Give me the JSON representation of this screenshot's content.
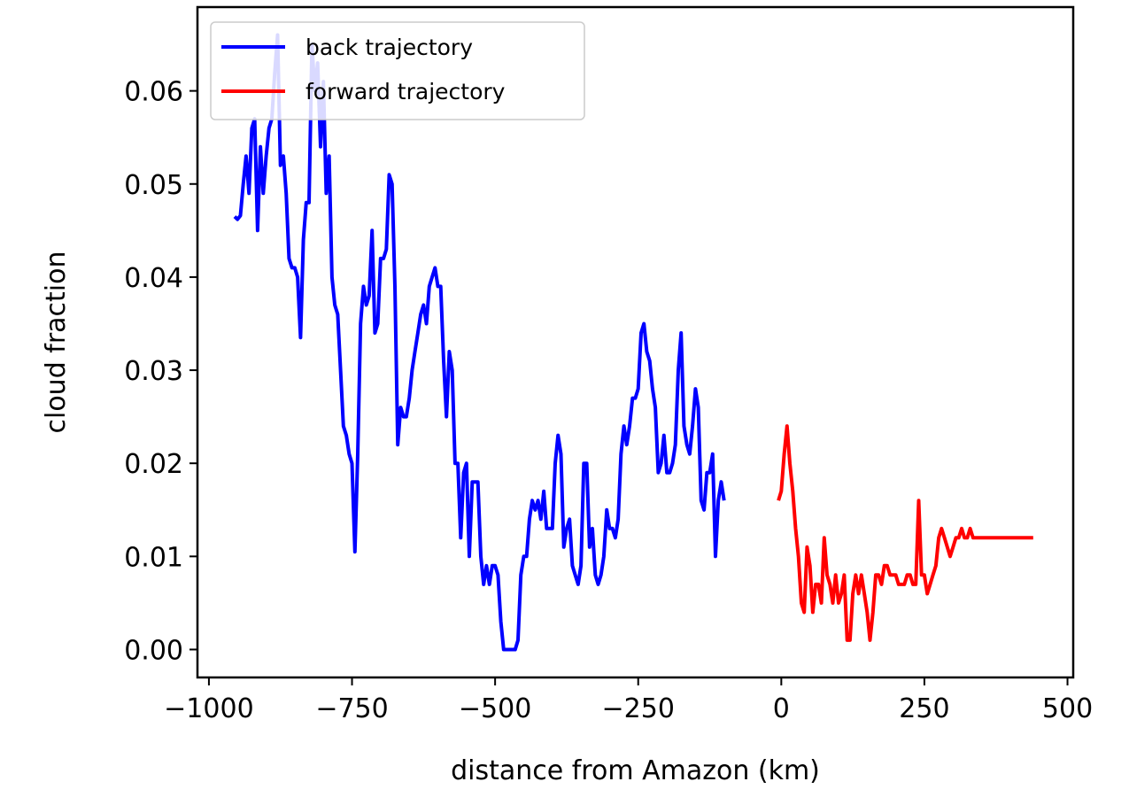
{
  "chart_data": {
    "type": "line",
    "title": "",
    "xlabel": "distance from Amazon (km)",
    "ylabel": "cloud fraction",
    "xlim": [
      -1020,
      510
    ],
    "ylim": [
      -0.003,
      0.069
    ],
    "xticks": [
      -1000,
      -750,
      -500,
      -250,
      0,
      250,
      500
    ],
    "xtick_labels": [
      "−1000",
      "−750",
      "−500",
      "−250",
      "0",
      "250",
      "500"
    ],
    "yticks": [
      0.0,
      0.01,
      0.02,
      0.03,
      0.04,
      0.05,
      0.06
    ],
    "ytick_labels": [
      "0.00",
      "0.01",
      "0.02",
      "0.03",
      "0.04",
      "0.05",
      "0.06"
    ],
    "grid": false,
    "legend": {
      "placement": "top-left"
    },
    "series": [
      {
        "name": "back trajectory",
        "color": "#0000ff",
        "points": [
          [
            -955,
            0.0465
          ],
          [
            -950,
            0.0462
          ],
          [
            -945,
            0.0466
          ],
          [
            -940,
            0.05
          ],
          [
            -935,
            0.053
          ],
          [
            -930,
            0.049
          ],
          [
            -925,
            0.056
          ],
          [
            -920,
            0.057
          ],
          [
            -915,
            0.045
          ],
          [
            -910,
            0.054
          ],
          [
            -905,
            0.049
          ],
          [
            -900,
            0.053
          ],
          [
            -895,
            0.056
          ],
          [
            -890,
            0.057
          ],
          [
            -885,
            0.062
          ],
          [
            -880,
            0.066
          ],
          [
            -875,
            0.052
          ],
          [
            -870,
            0.053
          ],
          [
            -865,
            0.049
          ],
          [
            -860,
            0.042
          ],
          [
            -855,
            0.041
          ],
          [
            -850,
            0.041
          ],
          [
            -845,
            0.04
          ],
          [
            -840,
            0.0335
          ],
          [
            -835,
            0.044
          ],
          [
            -830,
            0.048
          ],
          [
            -825,
            0.048
          ],
          [
            -820,
            0.065
          ],
          [
            -815,
            0.06
          ],
          [
            -810,
            0.063
          ],
          [
            -805,
            0.054
          ],
          [
            -800,
            0.061
          ],
          [
            -795,
            0.049
          ],
          [
            -790,
            0.053
          ],
          [
            -785,
            0.04
          ],
          [
            -780,
            0.037
          ],
          [
            -775,
            0.036
          ],
          [
            -770,
            0.03
          ],
          [
            -765,
            0.024
          ],
          [
            -760,
            0.023
          ],
          [
            -755,
            0.021
          ],
          [
            -750,
            0.02
          ],
          [
            -745,
            0.0105
          ],
          [
            -740,
            0.021
          ],
          [
            -735,
            0.035
          ],
          [
            -730,
            0.039
          ],
          [
            -725,
            0.037
          ],
          [
            -720,
            0.038
          ],
          [
            -715,
            0.045
          ],
          [
            -710,
            0.034
          ],
          [
            -705,
            0.035
          ],
          [
            -700,
            0.042
          ],
          [
            -695,
            0.042
          ],
          [
            -690,
            0.043
          ],
          [
            -685,
            0.051
          ],
          [
            -680,
            0.05
          ],
          [
            -675,
            0.039
          ],
          [
            -670,
            0.022
          ],
          [
            -665,
            0.026
          ],
          [
            -660,
            0.025
          ],
          [
            -655,
            0.025
          ],
          [
            -650,
            0.027
          ],
          [
            -645,
            0.03
          ],
          [
            -640,
            0.032
          ],
          [
            -635,
            0.034
          ],
          [
            -630,
            0.036
          ],
          [
            -625,
            0.037
          ],
          [
            -620,
            0.035
          ],
          [
            -615,
            0.039
          ],
          [
            -610,
            0.04
          ],
          [
            -605,
            0.041
          ],
          [
            -600,
            0.039
          ],
          [
            -595,
            0.039
          ],
          [
            -590,
            0.031
          ],
          [
            -585,
            0.025
          ],
          [
            -580,
            0.032
          ],
          [
            -575,
            0.03
          ],
          [
            -570,
            0.02
          ],
          [
            -565,
            0.02
          ],
          [
            -560,
            0.012
          ],
          [
            -555,
            0.019
          ],
          [
            -550,
            0.02
          ],
          [
            -545,
            0.01
          ],
          [
            -540,
            0.018
          ],
          [
            -535,
            0.018
          ],
          [
            -530,
            0.018
          ],
          [
            -525,
            0.01
          ],
          [
            -520,
            0.007
          ],
          [
            -515,
            0.009
          ],
          [
            -510,
            0.007
          ],
          [
            -505,
            0.009
          ],
          [
            -500,
            0.009
          ],
          [
            -495,
            0.008
          ],
          [
            -490,
            0.003
          ],
          [
            -485,
            0.0
          ],
          [
            -480,
            0.0
          ],
          [
            -475,
            0.0
          ],
          [
            -470,
            0.0
          ],
          [
            -465,
            0.0
          ],
          [
            -460,
            0.001
          ],
          [
            -455,
            0.008
          ],
          [
            -450,
            0.01
          ],
          [
            -445,
            0.01
          ],
          [
            -440,
            0.014
          ],
          [
            -435,
            0.016
          ],
          [
            -430,
            0.015
          ],
          [
            -425,
            0.016
          ],
          [
            -420,
            0.014
          ],
          [
            -415,
            0.017
          ],
          [
            -410,
            0.013
          ],
          [
            -405,
            0.013
          ],
          [
            -400,
            0.013
          ],
          [
            -395,
            0.02
          ],
          [
            -390,
            0.023
          ],
          [
            -385,
            0.021
          ],
          [
            -380,
            0.011
          ],
          [
            -375,
            0.013
          ],
          [
            -370,
            0.014
          ],
          [
            -365,
            0.009
          ],
          [
            -360,
            0.008
          ],
          [
            -355,
            0.007
          ],
          [
            -350,
            0.009
          ],
          [
            -345,
            0.02
          ],
          [
            -340,
            0.02
          ],
          [
            -335,
            0.011
          ],
          [
            -330,
            0.013
          ],
          [
            -325,
            0.008
          ],
          [
            -320,
            0.007
          ],
          [
            -315,
            0.008
          ],
          [
            -310,
            0.01
          ],
          [
            -305,
            0.015
          ],
          [
            -300,
            0.013
          ],
          [
            -295,
            0.013
          ],
          [
            -290,
            0.012
          ],
          [
            -285,
            0.014
          ],
          [
            -280,
            0.021
          ],
          [
            -275,
            0.024
          ],
          [
            -270,
            0.022
          ],
          [
            -265,
            0.024
          ],
          [
            -260,
            0.027
          ],
          [
            -255,
            0.027
          ],
          [
            -250,
            0.028
          ],
          [
            -245,
            0.034
          ],
          [
            -240,
            0.035
          ],
          [
            -235,
            0.032
          ],
          [
            -230,
            0.031
          ],
          [
            -225,
            0.028
          ],
          [
            -220,
            0.026
          ],
          [
            -215,
            0.019
          ],
          [
            -210,
            0.02
          ],
          [
            -205,
            0.023
          ],
          [
            -200,
            0.019
          ],
          [
            -195,
            0.019
          ],
          [
            -190,
            0.02
          ],
          [
            -185,
            0.022
          ],
          [
            -180,
            0.03
          ],
          [
            -175,
            0.034
          ],
          [
            -170,
            0.024
          ],
          [
            -165,
            0.022
          ],
          [
            -160,
            0.021
          ],
          [
            -155,
            0.024
          ],
          [
            -150,
            0.028
          ],
          [
            -145,
            0.026
          ],
          [
            -140,
            0.016
          ],
          [
            -135,
            0.015
          ],
          [
            -130,
            0.019
          ],
          [
            -125,
            0.019
          ],
          [
            -120,
            0.021
          ],
          [
            -115,
            0.01
          ],
          [
            -110,
            0.016
          ],
          [
            -105,
            0.018
          ],
          [
            -100,
            0.016
          ]
        ]
      },
      {
        "name": "forward trajectory",
        "color": "#ff0000",
        "points": [
          [
            -5,
            0.016
          ],
          [
            0,
            0.017
          ],
          [
            5,
            0.021
          ],
          [
            10,
            0.024
          ],
          [
            15,
            0.02
          ],
          [
            20,
            0.017
          ],
          [
            25,
            0.013
          ],
          [
            30,
            0.01
          ],
          [
            35,
            0.005
          ],
          [
            40,
            0.004
          ],
          [
            45,
            0.011
          ],
          [
            50,
            0.009
          ],
          [
            55,
            0.004
          ],
          [
            60,
            0.007
          ],
          [
            65,
            0.007
          ],
          [
            70,
            0.005
          ],
          [
            75,
            0.012
          ],
          [
            80,
            0.008
          ],
          [
            85,
            0.007
          ],
          [
            90,
            0.005
          ],
          [
            95,
            0.008
          ],
          [
            100,
            0.005
          ],
          [
            105,
            0.006
          ],
          [
            110,
            0.008
          ],
          [
            115,
            0.001
          ],
          [
            120,
            0.001
          ],
          [
            125,
            0.006
          ],
          [
            130,
            0.008
          ],
          [
            135,
            0.006
          ],
          [
            140,
            0.008
          ],
          [
            145,
            0.006
          ],
          [
            150,
            0.004
          ],
          [
            155,
            0.001
          ],
          [
            160,
            0.004
          ],
          [
            165,
            0.008
          ],
          [
            170,
            0.008
          ],
          [
            175,
            0.007
          ],
          [
            180,
            0.009
          ],
          [
            185,
            0.009
          ],
          [
            190,
            0.008
          ],
          [
            195,
            0.008
          ],
          [
            200,
            0.008
          ],
          [
            205,
            0.007
          ],
          [
            210,
            0.007
          ],
          [
            215,
            0.007
          ],
          [
            220,
            0.008
          ],
          [
            225,
            0.008
          ],
          [
            230,
            0.007
          ],
          [
            235,
            0.007
          ],
          [
            240,
            0.016
          ],
          [
            245,
            0.008
          ],
          [
            250,
            0.008
          ],
          [
            255,
            0.006
          ],
          [
            260,
            0.007
          ],
          [
            265,
            0.008
          ],
          [
            270,
            0.009
          ],
          [
            275,
            0.012
          ],
          [
            280,
            0.013
          ],
          [
            285,
            0.012
          ],
          [
            290,
            0.011
          ],
          [
            295,
            0.01
          ],
          [
            300,
            0.011
          ],
          [
            305,
            0.012
          ],
          [
            310,
            0.012
          ],
          [
            315,
            0.013
          ],
          [
            320,
            0.012
          ],
          [
            325,
            0.012
          ],
          [
            330,
            0.013
          ],
          [
            335,
            0.012
          ],
          [
            340,
            0.012
          ],
          [
            345,
            0.012
          ],
          [
            350,
            0.012
          ],
          [
            355,
            0.012
          ],
          [
            360,
            0.012
          ],
          [
            365,
            0.012
          ],
          [
            370,
            0.012
          ],
          [
            375,
            0.012
          ],
          [
            380,
            0.012
          ],
          [
            385,
            0.012
          ],
          [
            390,
            0.012
          ],
          [
            395,
            0.012
          ],
          [
            400,
            0.012
          ],
          [
            405,
            0.012
          ],
          [
            410,
            0.012
          ],
          [
            415,
            0.012
          ],
          [
            420,
            0.012
          ],
          [
            425,
            0.012
          ],
          [
            430,
            0.012
          ],
          [
            435,
            0.012
          ],
          [
            440,
            0.012
          ]
        ]
      }
    ]
  }
}
